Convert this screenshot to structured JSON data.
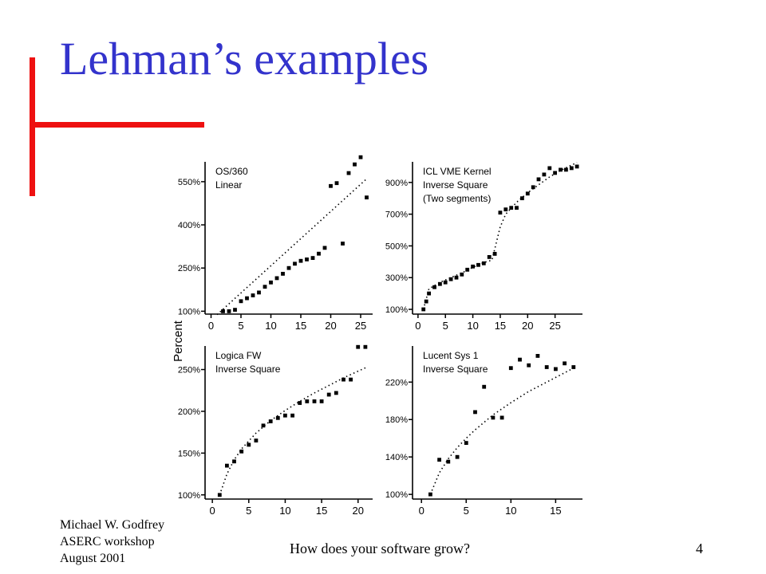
{
  "slide": {
    "title": "Lehman’s examples",
    "footer_author": "Michael W. Godfrey",
    "footer_event": "ASERC workshop",
    "footer_date": "August 2001",
    "footer_center": "How does your software grow?",
    "page_number": "4",
    "colors": {
      "title": "#3333cc",
      "accent": "#ee1111"
    }
  },
  "figure": {
    "ylabel": "Percent"
  },
  "chart_data": [
    {
      "type": "scatter",
      "title": "OS/360",
      "subtitle": "Linear",
      "xlim": [
        -1,
        27
      ],
      "ylim": [
        90,
        630
      ],
      "yticks": [
        100,
        250,
        400,
        550
      ],
      "ytick_labels": [
        "100%",
        "250%",
        "400%",
        "550%"
      ],
      "xticks": [
        0,
        5,
        10,
        15,
        20,
        25
      ],
      "x": [
        2,
        3,
        4,
        5,
        6,
        7,
        8,
        9,
        10,
        11,
        12,
        13,
        14,
        15,
        16,
        17,
        18,
        19,
        20,
        21,
        22,
        23,
        24,
        25,
        26
      ],
      "y": [
        100,
        100,
        105,
        135,
        145,
        155,
        165,
        185,
        200,
        215,
        230,
        250,
        265,
        275,
        280,
        285,
        300,
        320,
        535,
        545,
        335,
        580,
        610,
        635,
        495
      ],
      "fit": {
        "type": "linear",
        "x": [
          1,
          26
        ],
        "y": [
          88,
          560
        ]
      }
    },
    {
      "type": "scatter",
      "title": "ICL VME Kernel",
      "subtitle": "Inverse Square",
      "subtitle2": "(Two segments)",
      "xlim": [
        -1,
        30
      ],
      "ylim": [
        70,
        1050
      ],
      "yticks": [
        100,
        300,
        500,
        700,
        900
      ],
      "ytick_labels": [
        "100%",
        "300%",
        "500%",
        "700%",
        "900%"
      ],
      "xticks": [
        0,
        5,
        10,
        15,
        20,
        25
      ],
      "x": [
        1,
        1.5,
        2,
        3,
        4,
        5,
        6,
        7,
        8,
        9,
        10,
        11,
        12,
        13,
        14,
        15,
        16,
        17,
        18,
        19,
        20,
        21,
        22,
        23,
        24,
        25,
        26,
        27,
        28,
        29
      ],
      "y": [
        100,
        150,
        200,
        240,
        260,
        270,
        290,
        300,
        320,
        350,
        370,
        380,
        390,
        430,
        450,
        710,
        730,
        740,
        740,
        800,
        830,
        870,
        920,
        950,
        990,
        960,
        980,
        980,
        990,
        1000
      ],
      "fit": {
        "type": "two-segment",
        "x": [
          1,
          2,
          4,
          6,
          8,
          10,
          12,
          13.5,
          15,
          16,
          18,
          20,
          22,
          24,
          26,
          28,
          29
        ],
        "y": [
          100,
          230,
          270,
          300,
          330,
          365,
          395,
          410,
          620,
          700,
          775,
          835,
          885,
          935,
          975,
          1010,
          1025
        ]
      }
    },
    {
      "type": "scatter",
      "title": "Logica FW",
      "subtitle": "Inverse Square",
      "xlim": [
        -1,
        22
      ],
      "ylim": [
        95,
        282
      ],
      "yticks": [
        100,
        150,
        200,
        250
      ],
      "ytick_labels": [
        "100%",
        "150%",
        "200%",
        "250%"
      ],
      "xticks": [
        0,
        5,
        10,
        15,
        20
      ],
      "x": [
        1,
        2,
        3,
        4,
        5,
        6,
        7,
        8,
        9,
        10,
        11,
        12,
        13,
        14,
        15,
        16,
        17,
        18,
        19,
        20,
        21
      ],
      "y": [
        100,
        135,
        140,
        152,
        160,
        165,
        183,
        188,
        192,
        195,
        195,
        210,
        212,
        212,
        212,
        220,
        222,
        238,
        238,
        277,
        277
      ],
      "fit": {
        "type": "curve",
        "x": [
          1,
          2,
          3,
          4,
          6,
          8,
          10,
          12,
          14,
          16,
          18,
          20,
          21
        ],
        "y": [
          100,
          125,
          142,
          155,
          174,
          189,
          201,
          212,
          222,
          231,
          240,
          248,
          252
        ]
      }
    },
    {
      "type": "scatter",
      "title": "Lucent Sys 1",
      "subtitle": "Inverse Square",
      "xlim": [
        -1,
        18
      ],
      "ylim": [
        95,
        262
      ],
      "yticks": [
        100,
        140,
        180,
        220
      ],
      "ytick_labels": [
        "100%",
        "140%",
        "180%",
        "220%"
      ],
      "xticks": [
        0,
        5,
        10,
        15
      ],
      "x": [
        1,
        2,
        3,
        4,
        5,
        6,
        7,
        8,
        9,
        10,
        11,
        12,
        13,
        14,
        15,
        16,
        17
      ],
      "y": [
        100,
        137,
        135,
        140,
        155,
        188,
        215,
        182,
        182,
        235,
        244,
        238,
        248,
        236,
        234,
        240,
        236
      ],
      "fit": {
        "type": "curve",
        "x": [
          1,
          2,
          3,
          4,
          5,
          6,
          8,
          10,
          12,
          14,
          16,
          17
        ],
        "y": [
          100,
          123,
          138,
          150,
          160,
          169,
          185,
          198,
          210,
          220,
          230,
          235
        ]
      }
    }
  ]
}
